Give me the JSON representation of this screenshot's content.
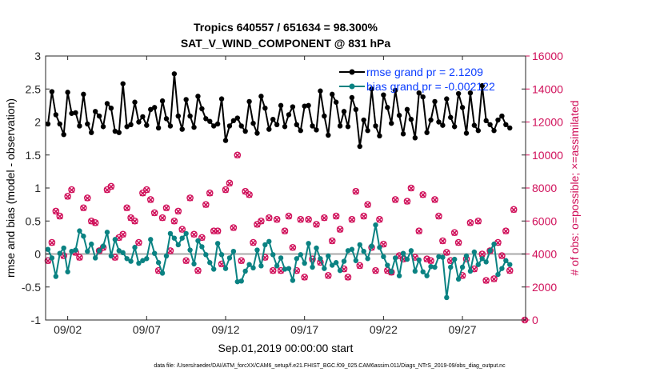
{
  "chart_data": {
    "type": "line",
    "title": "Tropics 640557 / 651634 = 98.300%",
    "subtitle": "SAT_V_WIND_COMPONENT @ 831 hPa",
    "xlabel": "Sep.01,2019 00:00:00 start",
    "ylabel": "rmse and bias (model - observation)",
    "y2label": "# of obs: o=possible; ×=assimilated",
    "ylim": [
      -1,
      3
    ],
    "y2lim": [
      0,
      16000
    ],
    "xlim": [
      0.6,
      31.0
    ],
    "x_ticks": [
      {
        "x": 2,
        "label": "09/02"
      },
      {
        "x": 7,
        "label": "09/07"
      },
      {
        "x": 12,
        "label": "09/12"
      },
      {
        "x": 17,
        "label": "09/17"
      },
      {
        "x": 22,
        "label": "09/22"
      },
      {
        "x": 27,
        "label": "09/27"
      }
    ],
    "y_ticks": [
      "-1",
      "-0.5",
      "0",
      "0.5",
      "1",
      "1.5",
      "2",
      "2.5",
      "3"
    ],
    "y_tick_values": [
      -1,
      -0.5,
      0,
      0.5,
      1,
      1.5,
      2,
      2.5,
      3
    ],
    "y2_ticks": [
      "0",
      "2000",
      "4000",
      "6000",
      "8000",
      "10000",
      "12000",
      "14000",
      "16000"
    ],
    "y2_tick_values": [
      0,
      2000,
      4000,
      6000,
      8000,
      10000,
      12000,
      14000,
      16000
    ],
    "x_start": 0.75,
    "x_step": 0.25,
    "series": [
      {
        "name": "rmse grand pr = 2.1209",
        "color": "#000000",
        "values": [
          1.97,
          2.46,
          2.11,
          1.97,
          1.81,
          2.45,
          2.13,
          2.14,
          1.94,
          2.42,
          1.97,
          1.84,
          2.16,
          2.09,
          1.93,
          2.28,
          2.21,
          1.86,
          1.84,
          2.58,
          1.93,
          1.96,
          2.3,
          2.0,
          2.08,
          1.95,
          2.19,
          2.22,
          1.91,
          2.32,
          2.05,
          1.94,
          2.73,
          2.09,
          1.89,
          2.34,
          2.09,
          1.92,
          2.39,
          2.2,
          2.05,
          2.01,
          1.94,
          1.97,
          2.35,
          1.72,
          1.94,
          2.02,
          2.06,
          1.94,
          1.86,
          2.31,
          1.98,
          1.83,
          2.39,
          2.21,
          1.89,
          2.04,
          1.96,
          2.25,
          1.93,
          2.11,
          2.23,
          1.96,
          1.87,
          2.24,
          2.25,
          1.94,
          1.88,
          2.47,
          2.09,
          1.8,
          2.42,
          2.3,
          1.94,
          2.16,
          1.93,
          2.37,
          2.19,
          1.63,
          2.03,
          1.87,
          2.5,
          1.94,
          1.79,
          2.41,
          2.22,
          1.98,
          2.48,
          2.1,
          1.82,
          2.19,
          2.04,
          1.76,
          2.44,
          2.38,
          1.84,
          2.03,
          2.31,
          2.0,
          1.95,
          2.35,
          2.07,
          1.93,
          2.43,
          2.22,
          1.83,
          2.44,
          1.95,
          1.87,
          2.55,
          2.02,
          1.96,
          1.87,
          2.03,
          2.09,
          1.96,
          1.91
        ]
      },
      {
        "name": "bias grand pr = -0.002122",
        "color": "#0a8282",
        "values": [
          0.07,
          -0.06,
          -0.34,
          0.01,
          0.09,
          -0.27,
          0.04,
          0.06,
          0.35,
          0.27,
          0.04,
          0.15,
          -0.06,
          0.05,
          0.12,
          0.33,
          -0.03,
          0.22,
          0.05,
          0.02,
          -0.07,
          -0.11,
          0.1,
          -0.14,
          -0.1,
          -0.07,
          0.22,
          0.01,
          -0.13,
          -0.29,
          -0.03,
          0.31,
          0.24,
          0.14,
          0.24,
          0.31,
          0.06,
          -0.15,
          0.2,
          0.11,
          -0.01,
          -0.13,
          -0.23,
          0.16,
          -0.01,
          -0.22,
          -0.06,
          0.04,
          -0.42,
          -0.41,
          -0.26,
          -0.16,
          -0.21,
          0.06,
          -0.18,
          0.14,
          0.19,
          -0.01,
          -0.18,
          -0.06,
          -0.23,
          -0.22,
          -0.4,
          -0.07,
          -0.01,
          -0.14,
          0.16,
          -0.2,
          0.09,
          -0.07,
          -0.22,
          -0.03,
          -0.17,
          -0.13,
          -0.25,
          -0.11,
          0.05,
          0.07,
          -0.1,
          0.14,
          0.04,
          -0.07,
          0.12,
          0.44,
          0.1,
          -0.04,
          -0.17,
          -0.27,
          -0.06,
          -0.33,
          0.01,
          -0.08,
          0.05,
          -0.26,
          -0.09,
          -0.27,
          -0.33,
          -0.19,
          -0.2,
          -0.04,
          -0.05,
          -0.66,
          -0.2,
          -0.08,
          -0.38,
          -0.2,
          -0.03,
          -0.26,
          0.03,
          -0.16,
          -0.07,
          -0.12,
          0.05,
          0.15,
          -0.31,
          -0.22,
          -0.1,
          -0.16
        ]
      },
      {
        "name": "# of obs possible (o)",
        "color": "#d0105a",
        "values": [
          3600,
          4700,
          6600,
          6300,
          3900,
          7500,
          7900,
          4100,
          3800,
          6800,
          7400,
          6000,
          5900,
          4200,
          4400,
          7900,
          8100,
          3800,
          5000,
          5200,
          6800,
          6200,
          6000,
          4700,
          7700,
          7900,
          7300,
          6500,
          3000,
          6200,
          6800,
          4200,
          6000,
          6600,
          5500,
          3600,
          7400,
          5200,
          3000,
          5000,
          7000,
          7700,
          5400,
          5400,
          3400,
          7900,
          8300,
          5600,
          10000,
          3600,
          7800,
          7600,
          4700,
          5800,
          6000,
          3800,
          6200,
          3000,
          6100,
          3000,
          5400,
          6300,
          4400,
          3000,
          6100,
          2600,
          6100,
          3700,
          5800,
          3500,
          6200,
          2700,
          4800,
          6300,
          5500,
          3100,
          2600,
          6100,
          7800,
          3300,
          6300,
          7000,
          4400,
          3000,
          6100,
          4600,
          3000,
          2900,
          7300,
          3900,
          3700,
          7200,
          8000,
          3800,
          5400,
          7600,
          3700,
          3600,
          7300,
          6300,
          4800,
          4100,
          3600,
          5300,
          4700,
          2700,
          3700,
          5900,
          3100,
          6000,
          4000,
          2400,
          4200,
          2500,
          4700,
          3900,
          5400,
          3000,
          6700
        ]
      },
      {
        "name": "# of obs assimilated (x)",
        "color": "#d0105a",
        "values": [
          3580,
          4680,
          6580,
          6280,
          3880,
          7480,
          7880,
          4080,
          3780,
          6780,
          7380,
          5980,
          5880,
          4180,
          4380,
          7880,
          8080,
          3780,
          4980,
          5180,
          6780,
          6180,
          5980,
          4680,
          7680,
          7880,
          7280,
          6480,
          2980,
          6180,
          6780,
          4180,
          5980,
          6580,
          5480,
          3580,
          7380,
          5180,
          2980,
          4980,
          6980,
          7680,
          5380,
          5380,
          3380,
          7880,
          8280,
          5580,
          9980,
          3580,
          7780,
          7580,
          4680,
          5780,
          5980,
          3780,
          6180,
          2980,
          6080,
          2980,
          5380,
          6280,
          4380,
          2980,
          6080,
          2580,
          6080,
          3680,
          5780,
          3480,
          6180,
          2680,
          4780,
          6280,
          5480,
          3080,
          2580,
          6080,
          7780,
          3280,
          6280,
          6980,
          4380,
          2980,
          6080,
          4580,
          2980,
          2880,
          7280,
          3880,
          3680,
          7180,
          7980,
          3780,
          5380,
          7580,
          3680,
          3580,
          7280,
          6280,
          4780,
          4080,
          3580,
          5280,
          4680,
          2680,
          3680,
          5880,
          3080,
          5980,
          3980,
          2380,
          4180,
          2480,
          4680,
          3880,
          5380,
          2980,
          6680
        ]
      }
    ],
    "zero_line_color": "#aaaaaa",
    "legend": {
      "position": "top-right"
    },
    "grid": false,
    "footnote": "data file: /Users/raeder/DAI/ATM_forcXX/CAM6_setup/f.e21.FHIST_BGC.f09_025.CAM6assim.011/Diags_NTrS_2019-09/obs_diag_output.nc"
  }
}
